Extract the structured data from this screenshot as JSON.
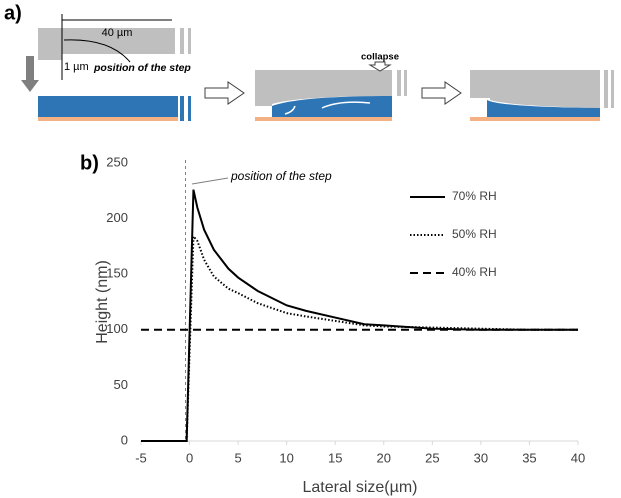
{
  "panel_a": {
    "label": "a)",
    "length_label": "40 µm",
    "height_label": "1 µm",
    "step_label": "position of the step",
    "collapse_label": "collapse"
  },
  "chart_data": {
    "type": "line",
    "panel_label": "b)",
    "annotation": "position of the step",
    "x_label": "Lateral size(µm)",
    "y_label": "Height (nm)",
    "x": [
      -5,
      -0.3,
      0.4,
      0.8,
      1.5,
      2.5,
      4,
      5,
      7,
      10,
      12,
      15,
      18,
      20,
      25,
      30,
      35,
      40
    ],
    "series": [
      {
        "name": "70% RH",
        "color": "#000000",
        "dash": "solid",
        "values": [
          0,
          0,
          226,
          210,
          190,
          172,
          155,
          147,
          135,
          122,
          117,
          111,
          105,
          104,
          101,
          100,
          100,
          100
        ]
      },
      {
        "name": "50% RH",
        "color": "#000000",
        "dash": "dotted",
        "values": [
          0,
          0,
          184,
          180,
          163,
          148,
          137,
          133,
          124,
          115,
          112,
          108,
          104,
          103,
          102,
          101,
          100,
          100
        ]
      },
      {
        "name": "40% RH",
        "color": "#000000",
        "dash": "dashed",
        "values": [
          100,
          100,
          100,
          100,
          100,
          100,
          100,
          100,
          100,
          100,
          100,
          100,
          100,
          100,
          100,
          100,
          100,
          100
        ]
      }
    ],
    "xlim": [
      -5,
      40
    ],
    "xticks": [
      -5,
      0,
      5,
      10,
      15,
      20,
      25,
      30,
      35,
      40
    ],
    "ylim": [
      0,
      250
    ],
    "yticks": [
      0,
      50,
      100,
      150,
      200,
      250
    ],
    "grid": false
  }
}
